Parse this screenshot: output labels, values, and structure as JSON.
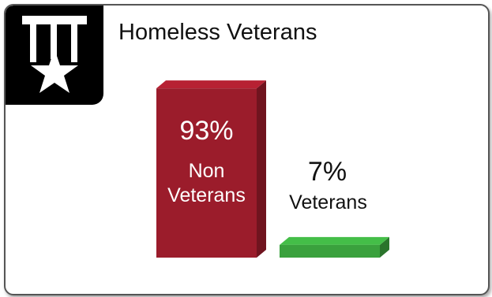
{
  "header": {
    "icon": "medal-star-icon",
    "title": "Homeless Veterans"
  },
  "chart_data": {
    "type": "bar",
    "categories": [
      "Non Veterans",
      "Veterans"
    ],
    "values": [
      93,
      7
    ],
    "value_labels": [
      "93%",
      "7%"
    ],
    "category_labels": [
      [
        "Non",
        "Veterans"
      ],
      [
        "Veterans"
      ]
    ],
    "title": "Homeless Veterans",
    "ylim": [
      0,
      100
    ],
    "grid": false,
    "legend": "none",
    "colors": {
      "non_veterans": "#9b1c2b",
      "veterans": "#3aa13d"
    }
  }
}
